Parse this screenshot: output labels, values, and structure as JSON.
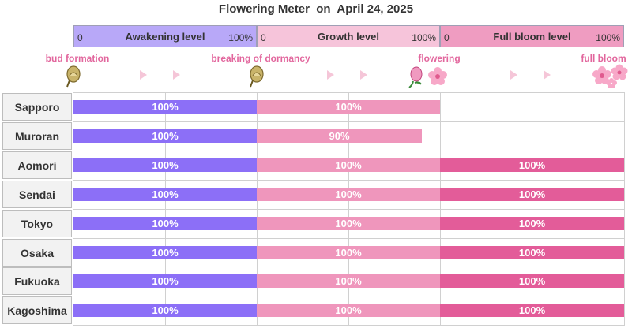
{
  "title": "Flowering Meter  on  April 24, 2025",
  "stages": [
    {
      "name": "Awakening level",
      "min": "0",
      "max": "100%",
      "color": "#8c6ff7",
      "header_color": "#b8a8f8"
    },
    {
      "name": "Growth level",
      "min": "0",
      "max": "100%",
      "color": "#ef96bc",
      "header_color": "#f6c4da"
    },
    {
      "name": "Full bloom level",
      "min": "0",
      "max": "100%",
      "color": "#e35c99",
      "header_color": "#ef9cc1"
    }
  ],
  "milestones": [
    "bud formation",
    "breaking of dormancy",
    "flowering",
    "full bloom"
  ],
  "icons": [
    "bud-icon",
    "bud-icon",
    "flower-icon",
    "flowers-icon"
  ],
  "chart_data": {
    "type": "bar",
    "title": "Flowering Meter  on  April 24, 2025",
    "categories": [
      "Sapporo",
      "Muroran",
      "Aomori",
      "Sendai",
      "Tokyo",
      "Osaka",
      "Fukuoka",
      "Kagoshima"
    ],
    "series": [
      {
        "name": "Awakening level",
        "values": [
          100,
          100,
          100,
          100,
          100,
          100,
          100,
          100
        ],
        "labels": [
          "100%",
          "100%",
          "100%",
          "100%",
          "100%",
          "100%",
          "100%",
          "100%"
        ]
      },
      {
        "name": "Growth level",
        "values": [
          100,
          90,
          100,
          100,
          100,
          100,
          100,
          100
        ],
        "labels": [
          "100%",
          "90%",
          "100%",
          "100%",
          "100%",
          "100%",
          "100%",
          "100%"
        ]
      },
      {
        "name": "Full bloom level",
        "values": [
          null,
          null,
          100,
          100,
          100,
          100,
          100,
          100
        ],
        "labels": [
          null,
          null,
          "100%",
          "100%",
          "100%",
          "100%",
          "100%",
          "100%"
        ]
      }
    ],
    "xlim": [
      0,
      100
    ],
    "stacked_segments": true,
    "grid": true
  }
}
